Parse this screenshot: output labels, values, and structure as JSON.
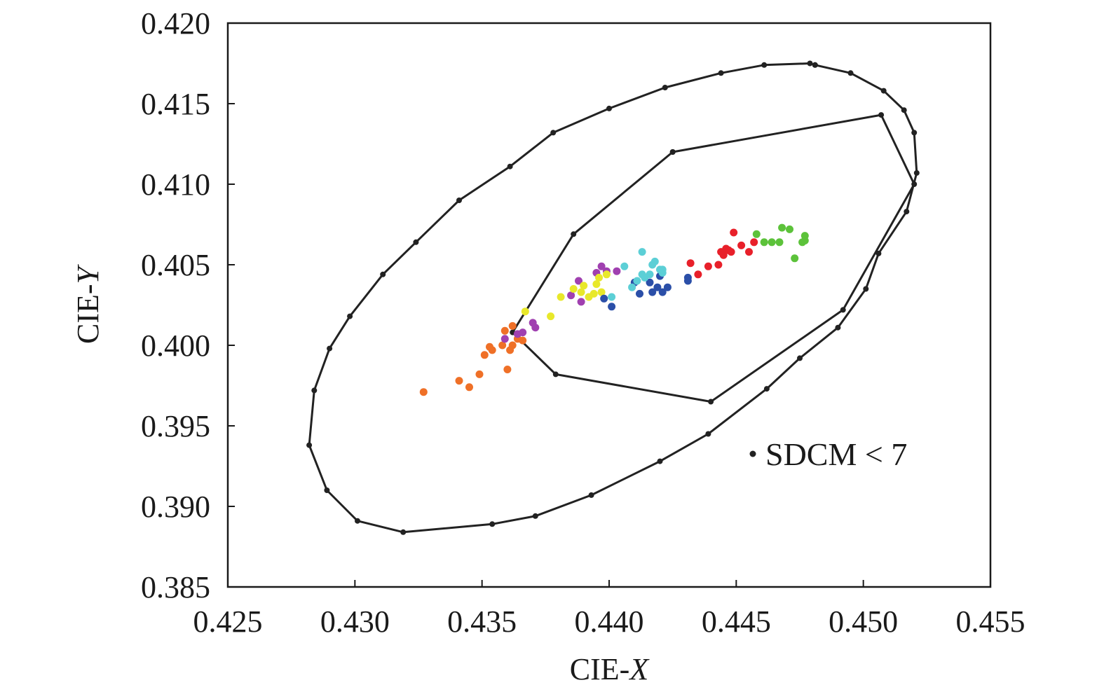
{
  "chart_data": {
    "type": "scatter",
    "xlabel_prefix": "CIE-",
    "xlabel_var": "X",
    "ylabel_prefix": "CIE-",
    "ylabel_var": "Y",
    "xlim": [
      0.425,
      0.455
    ],
    "ylim": [
      0.385,
      0.42
    ],
    "xticks": [
      "0.425",
      "0.430",
      "0.435",
      "0.440",
      "0.445",
      "0.450",
      "0.455"
    ],
    "yticks": [
      "0.385",
      "0.390",
      "0.395",
      "0.400",
      "0.405",
      "0.410",
      "0.415",
      "0.420"
    ],
    "grid": false,
    "legend": {
      "label": "SDCM < 7",
      "position": "bottom-right",
      "marker_color": "#222222"
    },
    "boundaries": [
      {
        "label": "SDCM < 7",
        "color": "#222222",
        "closed": true,
        "points": [
          [
            0.4481,
            0.4174
          ],
          [
            0.4495,
            0.4169
          ],
          [
            0.4508,
            0.4158
          ],
          [
            0.4516,
            0.4146
          ],
          [
            0.452,
            0.4132
          ],
          [
            0.4521,
            0.4107
          ],
          [
            0.4517,
            0.4083
          ],
          [
            0.4506,
            0.4057
          ],
          [
            0.4501,
            0.4035
          ],
          [
            0.449,
            0.4011
          ],
          [
            0.4475,
            0.3992
          ],
          [
            0.4462,
            0.3973
          ],
          [
            0.4439,
            0.3945
          ],
          [
            0.442,
            0.3928
          ],
          [
            0.4393,
            0.3907
          ],
          [
            0.4371,
            0.3894
          ],
          [
            0.4354,
            0.3889
          ],
          [
            0.4319,
            0.3884
          ],
          [
            0.4301,
            0.3891
          ],
          [
            0.4289,
            0.391
          ],
          [
            0.4282,
            0.3938
          ],
          [
            0.4284,
            0.3972
          ],
          [
            0.429,
            0.3998
          ],
          [
            0.4298,
            0.4018
          ],
          [
            0.4311,
            0.4044
          ],
          [
            0.4324,
            0.4064
          ],
          [
            0.4341,
            0.409
          ],
          [
            0.4361,
            0.4111
          ],
          [
            0.4378,
            0.4132
          ],
          [
            0.44,
            0.4147
          ],
          [
            0.4422,
            0.416
          ],
          [
            0.4444,
            0.4169
          ],
          [
            0.4461,
            0.4174
          ],
          [
            0.4479,
            0.4175
          ],
          [
            0.4481,
            0.4174
          ]
        ]
      },
      {
        "label": "inner",
        "color": "#222222",
        "closed": true,
        "points": [
          [
            0.4425,
            0.412
          ],
          [
            0.4507,
            0.4143
          ],
          [
            0.452,
            0.41
          ],
          [
            0.4492,
            0.4022
          ],
          [
            0.444,
            0.3965
          ],
          [
            0.4379,
            0.3982
          ],
          [
            0.4362,
            0.4008
          ],
          [
            0.4386,
            0.4069
          ],
          [
            0.4425,
            0.412
          ]
        ]
      }
    ],
    "series": [
      {
        "color": "#ef7027",
        "points": [
          [
            0.4327,
            0.3971
          ],
          [
            0.4341,
            0.3978
          ],
          [
            0.4345,
            0.3974
          ],
          [
            0.4349,
            0.3982
          ],
          [
            0.4351,
            0.3994
          ],
          [
            0.4353,
            0.3999
          ],
          [
            0.4354,
            0.3997
          ],
          [
            0.4358,
            0.4
          ],
          [
            0.4359,
            0.4009
          ],
          [
            0.436,
            0.3985
          ],
          [
            0.4361,
            0.3997
          ],
          [
            0.4362,
            0.4
          ],
          [
            0.4362,
            0.4012
          ],
          [
            0.4364,
            0.4004
          ],
          [
            0.4366,
            0.4003
          ]
        ]
      },
      {
        "color": "#a040b0",
        "points": [
          [
            0.4359,
            0.4004
          ],
          [
            0.4364,
            0.4007
          ],
          [
            0.4366,
            0.4008
          ],
          [
            0.437,
            0.4014
          ],
          [
            0.4371,
            0.4011
          ],
          [
            0.4385,
            0.4031
          ],
          [
            0.4388,
            0.404
          ],
          [
            0.4389,
            0.4027
          ],
          [
            0.4395,
            0.4045
          ],
          [
            0.4397,
            0.4049
          ],
          [
            0.4399,
            0.4046
          ],
          [
            0.4403,
            0.4046
          ]
        ]
      },
      {
        "color": "#e8e82a",
        "points": [
          [
            0.4367,
            0.4021
          ],
          [
            0.4377,
            0.4018
          ],
          [
            0.4381,
            0.403
          ],
          [
            0.4386,
            0.4035
          ],
          [
            0.4389,
            0.4033
          ],
          [
            0.439,
            0.4037
          ],
          [
            0.4392,
            0.403
          ],
          [
            0.4394,
            0.4032
          ],
          [
            0.4395,
            0.4038
          ],
          [
            0.4396,
            0.4042
          ],
          [
            0.4397,
            0.4033
          ],
          [
            0.4399,
            0.4044
          ]
        ]
      },
      {
        "color": "#2b4fa8",
        "points": [
          [
            0.4398,
            0.4029
          ],
          [
            0.4401,
            0.4024
          ],
          [
            0.441,
            0.4039
          ],
          [
            0.4412,
            0.4032
          ],
          [
            0.4416,
            0.4039
          ],
          [
            0.4417,
            0.4033
          ],
          [
            0.4419,
            0.4036
          ],
          [
            0.442,
            0.4043
          ],
          [
            0.4421,
            0.4033
          ],
          [
            0.4423,
            0.4036
          ],
          [
            0.4431,
            0.404
          ],
          [
            0.4431,
            0.4042
          ]
        ]
      },
      {
        "color": "#5ccfd6",
        "points": [
          [
            0.4401,
            0.403
          ],
          [
            0.4406,
            0.4049
          ],
          [
            0.4409,
            0.4036
          ],
          [
            0.4411,
            0.404
          ],
          [
            0.4413,
            0.4044
          ],
          [
            0.4413,
            0.4058
          ],
          [
            0.4414,
            0.4042
          ],
          [
            0.4416,
            0.4044
          ],
          [
            0.4417,
            0.405
          ],
          [
            0.4418,
            0.4052
          ],
          [
            0.442,
            0.4047
          ],
          [
            0.4421,
            0.4045
          ],
          [
            0.4421,
            0.4047
          ]
        ]
      },
      {
        "color": "#e8202a",
        "points": [
          [
            0.4432,
            0.4051
          ],
          [
            0.4435,
            0.4044
          ],
          [
            0.4439,
            0.4049
          ],
          [
            0.4443,
            0.405
          ],
          [
            0.4444,
            0.4058
          ],
          [
            0.4445,
            0.4056
          ],
          [
            0.4446,
            0.406
          ],
          [
            0.4447,
            0.4059
          ],
          [
            0.4448,
            0.4058
          ],
          [
            0.4449,
            0.407
          ],
          [
            0.4452,
            0.4062
          ],
          [
            0.4455,
            0.4058
          ],
          [
            0.4457,
            0.4064
          ]
        ]
      },
      {
        "color": "#5cc23a",
        "points": [
          [
            0.4458,
            0.4069
          ],
          [
            0.4461,
            0.4064
          ],
          [
            0.4464,
            0.4064
          ],
          [
            0.4467,
            0.4064
          ],
          [
            0.4468,
            0.4073
          ],
          [
            0.4471,
            0.4072
          ],
          [
            0.4473,
            0.4054
          ],
          [
            0.4476,
            0.4064
          ],
          [
            0.4477,
            0.4065
          ],
          [
            0.4477,
            0.4068
          ]
        ]
      }
    ]
  }
}
